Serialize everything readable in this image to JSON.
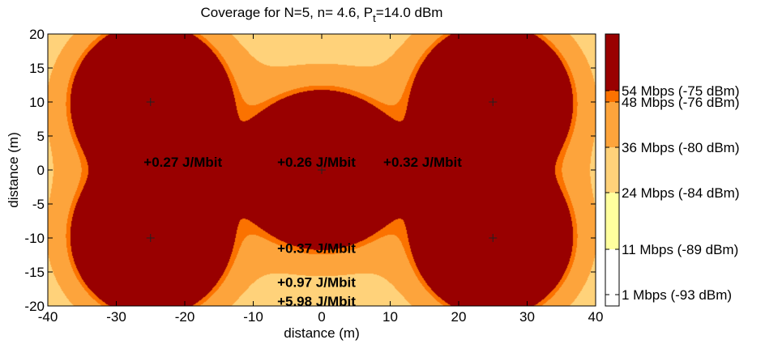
{
  "chart_data": {
    "type": "heatmap",
    "title_main": "Coverage for N=5, n= 4.6, P",
    "title_sub": "t",
    "title_tail": "=14.0 dBm",
    "xlabel": "distance (m)",
    "ylabel": "distance (m)",
    "xlim": [
      -40,
      40
    ],
    "ylim": [
      -20,
      20
    ],
    "xticks": [
      -40,
      -30,
      -20,
      -10,
      0,
      10,
      20,
      30,
      40
    ],
    "yticks": [
      -20,
      -15,
      -10,
      -5,
      0,
      5,
      10,
      15,
      20
    ],
    "access_points": [
      {
        "x": -25,
        "y": 10
      },
      {
        "x": 25,
        "y": 10
      },
      {
        "x": 0,
        "y": 0
      },
      {
        "x": -25,
        "y": -10
      },
      {
        "x": 25,
        "y": -10
      }
    ],
    "path_loss_exponent": 4.6,
    "tx_power_dbm": 14.0,
    "levels": [
      {
        "label": "1 Mbps (-93 dBm)",
        "dbm": -93,
        "color": "#ffffff"
      },
      {
        "label": "11 Mbps (-89 dBm)",
        "dbm": -89,
        "color": "#ffff9e"
      },
      {
        "label": "24 Mbps (-84 dBm)",
        "dbm": -84,
        "color": "#ffd27a"
      },
      {
        "label": "36 Mbps (-80 dBm)",
        "dbm": -80,
        "color": "#fda43c"
      },
      {
        "label": "48 Mbps (-76 dBm)",
        "dbm": -76,
        "color": "#fb7200"
      },
      {
        "label": "54 Mbps (-75 dBm)",
        "dbm": -75,
        "color": "#990000"
      }
    ],
    "colorbar_range_dbm": [
      -94,
      -70
    ],
    "annotations": [
      {
        "text": "+0.27 J/Mbit",
        "x": -26,
        "y": 1.2
      },
      {
        "text": "+0.26 J/Mbit",
        "x": -6.5,
        "y": 1.2
      },
      {
        "text": "+0.32 J/Mbit",
        "x": 9,
        "y": 1.2
      },
      {
        "text": "+0.37 J/Mbit",
        "x": -6.5,
        "y": -11.5
      },
      {
        "text": "+0.97 J/Mbit",
        "x": -6.5,
        "y": -16.5
      },
      {
        "text": "+5.98 J/Mbit",
        "x": -6.5,
        "y": -19.3
      }
    ]
  }
}
